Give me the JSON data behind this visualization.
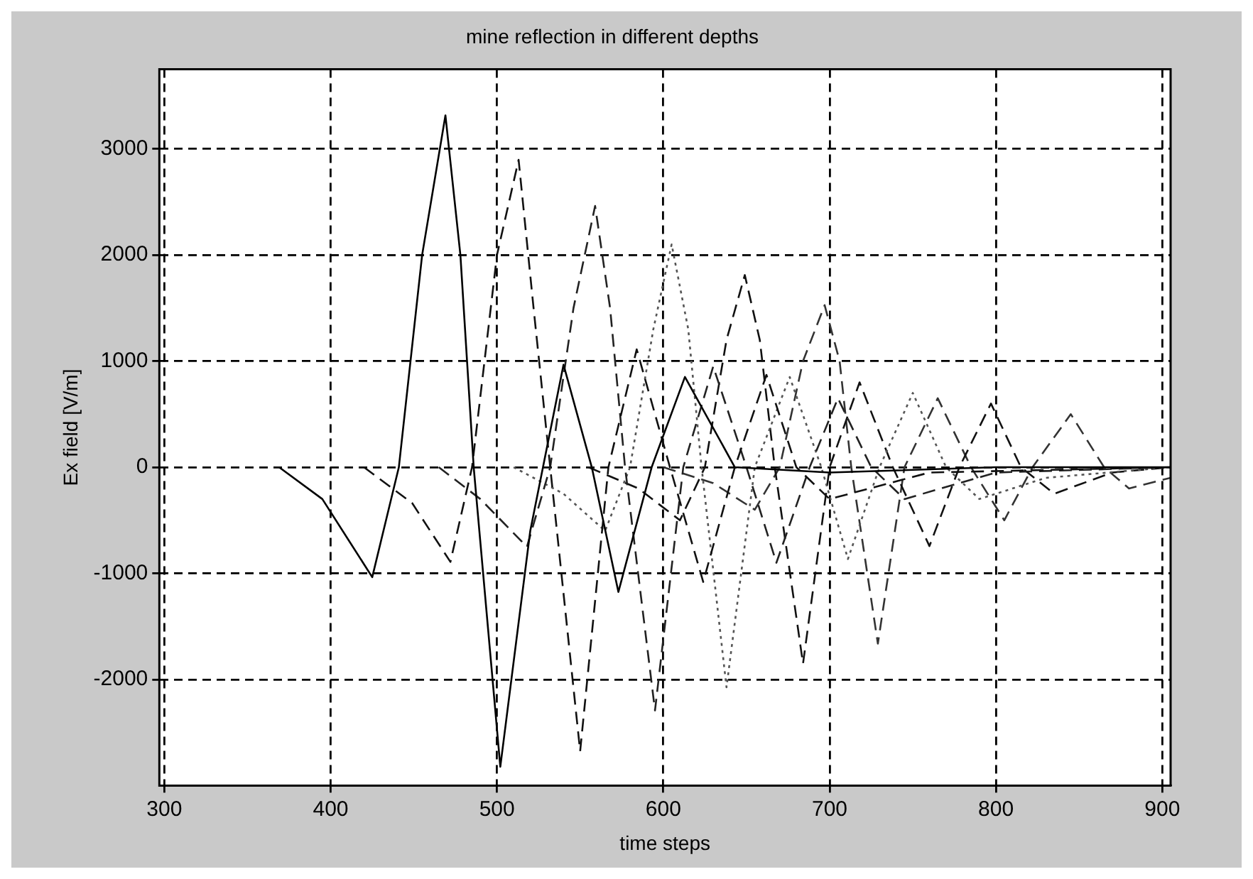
{
  "chart_data": {
    "type": "line",
    "title": "mine reflection in different depths",
    "xlabel": "time steps",
    "ylabel": "Ex field [V/m]",
    "xlim": [
      297,
      905
    ],
    "xticks": [
      300,
      400,
      500,
      600,
      700,
      800,
      900
    ],
    "ylim": [
      -3000,
      3750
    ],
    "yticks": [
      -2000,
      -1000,
      0,
      1000,
      2000,
      3000
    ],
    "grid": true,
    "marker": "none",
    "series": [
      {
        "color": "#000000",
        "line_style": "solid",
        "x": [
          369,
          395,
          425,
          441,
          455,
          469,
          478,
          486,
          502,
          520,
          540,
          557,
          573,
          593,
          613,
          643,
          700,
          800,
          905
        ],
        "values": [
          0,
          -300,
          -1036,
          0,
          2000,
          3316,
          2000,
          0,
          -2823,
          -600,
          966,
          0,
          -1175,
          0,
          851,
          0,
          -50,
          0,
          0
        ]
      },
      {
        "color": "#111111",
        "line_style": "dashed",
        "x": [
          420,
          449,
          472,
          485,
          500,
          513,
          522,
          532,
          550,
          567,
          584,
          604,
          624,
          643,
          662,
          680,
          700,
          760,
          905
        ],
        "values": [
          0,
          -338,
          -892,
          0,
          2000,
          2897,
          1500,
          0,
          -2676,
          0,
          1111,
          0,
          -1081,
          0,
          870,
          0,
          -300,
          -50,
          0
        ]
      },
      {
        "color": "#222222",
        "line_style": "dashed",
        "x": [
          465,
          490,
          518,
          532,
          546,
          559,
          568,
          577,
          595,
          612,
          630,
          650,
          668,
          688,
          705,
          725,
          745,
          800,
          905
        ],
        "values": [
          0,
          -300,
          -750,
          0,
          1500,
          2462,
          1500,
          0,
          -2292,
          0,
          950,
          0,
          -900,
          0,
          650,
          0,
          -300,
          -50,
          0
        ]
      },
      {
        "color": "#555555",
        "line_style": "dotted",
        "x": [
          510,
          540,
          565,
          580,
          594,
          605,
          615,
          623,
          638,
          655,
          676,
          695,
          711,
          730,
          750,
          770,
          790,
          830,
          905
        ],
        "values": [
          0,
          -250,
          -600,
          0,
          1300,
          2100,
          1300,
          0,
          -2074,
          0,
          850,
          0,
          -865,
          0,
          700,
          0,
          -300,
          -100,
          0
        ]
      },
      {
        "color": "#111111",
        "line_style": "dashed",
        "x": [
          555,
          585,
          610,
          625,
          638,
          649,
          658,
          667,
          684,
          700,
          718,
          738,
          760,
          778,
          797,
          815,
          835,
          870,
          905
        ],
        "values": [
          0,
          -200,
          -500,
          0,
          1200,
          1811,
          1200,
          0,
          -1851,
          0,
          800,
          0,
          -743,
          0,
          600,
          0,
          -250,
          -50,
          0
        ]
      },
      {
        "color": "#333333",
        "line_style": "dashed",
        "x": [
          600,
          630,
          655,
          670,
          684,
          697,
          706,
          713,
          729,
          745,
          765,
          785,
          805,
          822,
          845,
          865,
          880,
          905
        ],
        "values": [
          0,
          -150,
          -400,
          0,
          1000,
          1527,
          1000,
          0,
          -1662,
          0,
          650,
          0,
          -500,
          0,
          500,
          0,
          -200,
          -100
        ]
      }
    ]
  }
}
